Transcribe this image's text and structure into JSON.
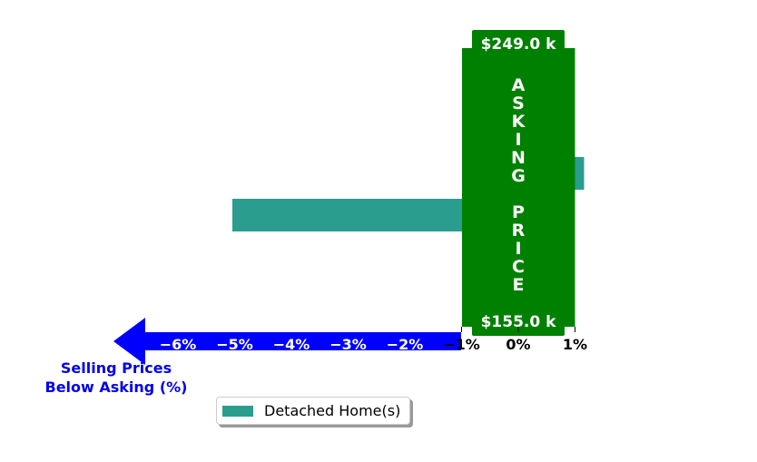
{
  "chart_data": {
    "type": "bar",
    "orientation": "horizontal",
    "series": [
      {
        "name": "Detached Home(s)",
        "color": "#2a9d8f",
        "values": [
          1.16,
          -5.04
        ]
      }
    ],
    "x_ticks": [
      -6,
      -5,
      -4,
      -3,
      -2,
      -1,
      0,
      1
    ],
    "x_tick_labels": [
      "−6%",
      "−5%",
      "−4%",
      "−3%",
      "−2%",
      "−1%",
      "0%",
      "1%"
    ],
    "xlim": [
      -7.1,
      1.25
    ],
    "xlabel_lines": [
      "Selling Prices",
      "Below Asking (%)"
    ],
    "asking_band": {
      "x_range": [
        -1,
        1
      ],
      "color": "#008000",
      "top_label": "$249.0 k",
      "bottom_label": "$155.0 k",
      "vertical_text": "ASKING PRICE"
    },
    "arrow_color": "#0000ff",
    "label_color": "#0000ee",
    "legend_position": "bottom-center"
  }
}
